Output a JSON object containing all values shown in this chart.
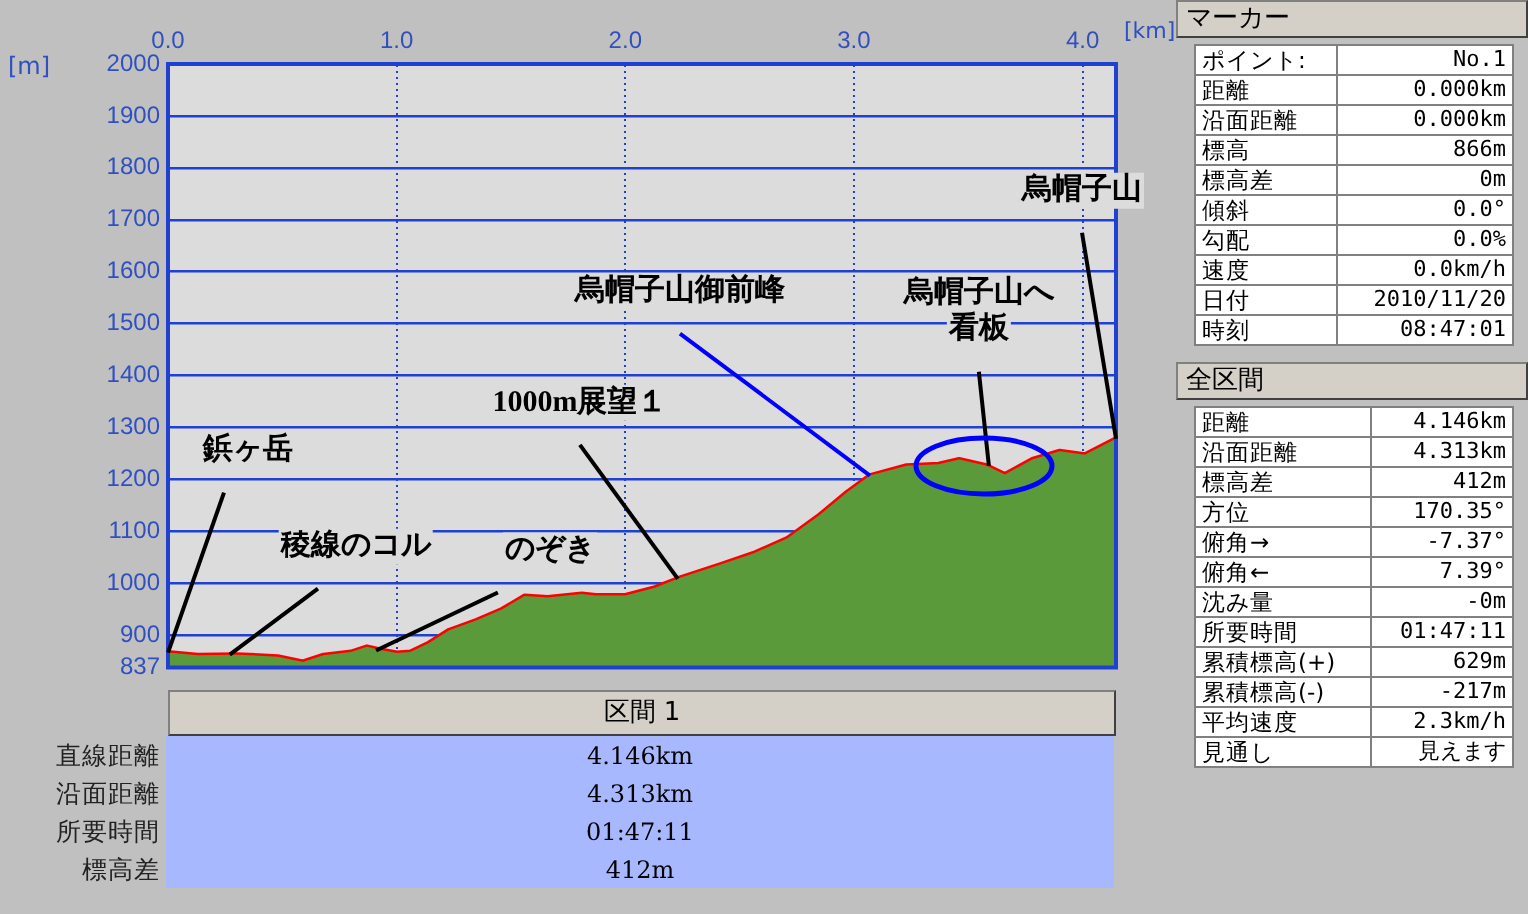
{
  "chart_data": [
    {
      "type": "area",
      "xlabel": "[km]",
      "ylabel": "[m]",
      "series": [
        {
          "type": "area",
          "color": "#5a9a3a",
          "values": [
            866,
            861,
            862,
            858,
            848,
            861,
            867,
            877,
            871,
            865,
            867,
            884,
            909,
            928,
            949,
            975,
            972,
            979,
            976,
            976,
            991,
            1010,
            1036,
            1057,
            1086,
            1131,
            1175,
            1207,
            1226,
            1229,
            1238,
            1226,
            1209,
            1238,
            1254,
            1247,
            1278
          ]
        },
        {
          "type": "line",
          "color": "#ff0000",
          "values": [
            866,
            861,
            862,
            858,
            848,
            861,
            867,
            877,
            871,
            865,
            867,
            884,
            909,
            928,
            949,
            975,
            972,
            979,
            976,
            976,
            991,
            1010,
            1036,
            1057,
            1086,
            1131,
            1175,
            1207,
            1226,
            1229,
            1238,
            1226,
            1209,
            1238,
            1254,
            1247,
            1278
          ]
        }
      ],
      "x": [
        0,
        0.13,
        0.3,
        0.48,
        0.59,
        0.68,
        0.8,
        0.87,
        0.93,
        1.0,
        1.06,
        1.14,
        1.23,
        1.35,
        1.46,
        1.56,
        1.66,
        1.81,
        1.87,
        2.0,
        2.13,
        2.24,
        2.42,
        2.56,
        2.71,
        2.85,
        2.97,
        3.07,
        3.23,
        3.37,
        3.46,
        3.58,
        3.66,
        3.78,
        3.9,
        4.01,
        4.146
      ],
      "xlim": [
        0,
        4.146
      ],
      "xticks": [
        {
          "value": 0,
          "label": "0.0"
        },
        {
          "value": 1,
          "label": "1.0"
        },
        {
          "value": 2,
          "label": "2.0"
        },
        {
          "value": 3,
          "label": "3.0"
        },
        {
          "value": 4,
          "label": "4.0"
        }
      ],
      "ylim": [
        837,
        2000
      ],
      "yticks": [
        837,
        900,
        1000,
        1100,
        1200,
        1300,
        1400,
        1500,
        1600,
        1700,
        1800,
        1900,
        2000
      ],
      "grid": true,
      "annotations": [
        {
          "text": "鋲ヶ岳",
          "x": 0,
          "y": 866
        },
        {
          "text": "稜線のコル",
          "x": 0.27,
          "y": 862
        },
        {
          "text": "のぞき",
          "x": 0.91,
          "y": 870
        },
        {
          "text": "1000m展望１",
          "x": 2.23,
          "y": 1008
        },
        {
          "text": "烏帽子山御前峰",
          "x": 3.07,
          "y": 1207
        },
        {
          "text": "烏帽子山へ看板",
          "x": 3.59,
          "y": 1226
        },
        {
          "text": "烏帽子山",
          "x": 4.146,
          "y": 1278
        }
      ]
    },
    {
      "type": "other",
      "title": "区間 1",
      "annotations": [
        "直線距離",
        "4.146km",
        "沿面距離",
        "4.313km",
        "所要時間",
        "01:47:11",
        "標高差",
        "412m"
      ]
    },
    {
      "type": "other",
      "title": "マーカー",
      "annotations": [
        "ポイント:",
        "No.1",
        "距離",
        "0.000km",
        "沿面距離",
        "0.000km",
        "標高",
        "866m",
        "標高差",
        "0m",
        "傾斜",
        "0.0°",
        "勾配",
        "0.0%",
        "速度",
        "0.0km/h",
        "日付",
        "2010/11/20",
        "時刻",
        "08:47:01"
      ]
    },
    {
      "type": "other",
      "title": "全区間",
      "annotations": [
        "距離",
        "4.146km",
        "沿面距離",
        "4.313km",
        "標高差",
        "412m",
        "方位",
        "170.35°",
        "俯角→",
        "-7.37°",
        "俯角←",
        "7.39°",
        "沈み量",
        "-0m",
        "所要時間",
        "01:47:11",
        "累積標高(+)",
        "629m",
        "累積標高(-)",
        "-217m",
        "平均速度",
        "2.3km/h",
        "見通し",
        "見えます"
      ]
    }
  ]
}
